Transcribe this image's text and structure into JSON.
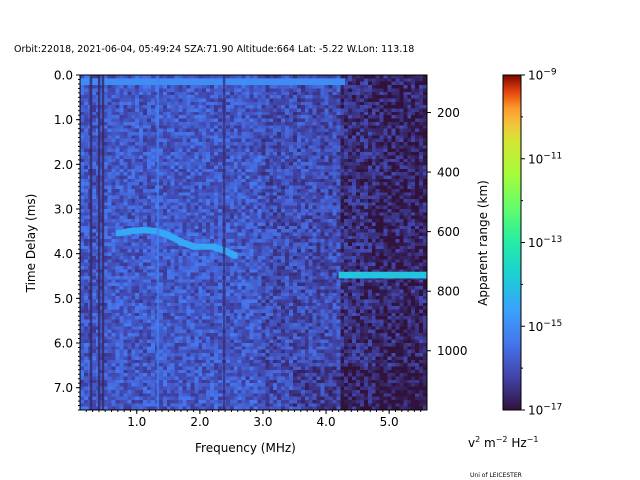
{
  "title": "Orbit:22018, 2021-06-04, 05:49:24 SZA:71.90 Altitude:664 Lat: -5.22 W.Lon: 113.18",
  "footer": "Uni of LEICESTER",
  "chart_data": {
    "type": "heatmap",
    "xlabel": "Frequency (MHz)",
    "ylabel": "Time Delay (ms)",
    "y2label": "Apparent range (km)",
    "xlim": [
      0.1,
      5.6
    ],
    "ylim": [
      7.5,
      0.0
    ],
    "xticks": [
      1.0,
      2.0,
      3.0,
      4.0,
      5.0
    ],
    "xtick_labels": [
      "1.0",
      "2.0",
      "3.0",
      "4.0",
      "5.0"
    ],
    "yticks": [
      0.0,
      1.0,
      2.0,
      3.0,
      4.0,
      5.0,
      6.0,
      7.0
    ],
    "ytick_labels": [
      "0.0",
      "1.0",
      "2.0",
      "3.0",
      "4.0",
      "5.0",
      "6.0",
      "7.0"
    ],
    "y2lim_km": [
      74,
      1199
    ],
    "y2ticks": [
      200,
      400,
      600,
      800,
      1000
    ],
    "y2tick_labels": [
      "200",
      "400",
      "600",
      "800",
      "1000"
    ],
    "colorbar": {
      "label_base": "v",
      "label_rest": " m",
      "label_sup1": "2",
      "label_sup2": "−2",
      "label_tail": " Hz",
      "label_sup3": "−1",
      "scale": "log",
      "ticks": [
        {
          "base": "10",
          "exp": "−9",
          "value": -9
        },
        {
          "base": "10",
          "exp": "−11",
          "value": -11
        },
        {
          "base": "10",
          "exp": "−13",
          "value": -13
        },
        {
          "base": "10",
          "exp": "−15",
          "value": -15
        },
        {
          "base": "10",
          "exp": "−17",
          "value": -17
        }
      ],
      "range_log10": [
        -17,
        -9
      ]
    },
    "grid": false,
    "features": [
      {
        "name": "trace-echo",
        "points": [
          [
            0.7,
            3.55
          ],
          [
            0.9,
            3.5
          ],
          [
            1.1,
            3.48
          ],
          [
            1.3,
            3.5
          ],
          [
            1.5,
            3.6
          ],
          [
            1.7,
            3.75
          ],
          [
            1.9,
            3.85
          ],
          [
            2.2,
            3.85
          ],
          [
            2.4,
            3.95
          ],
          [
            2.55,
            4.05
          ]
        ],
        "log10": -14.5
      },
      {
        "name": "horizontal-echo",
        "x_range": [
          4.2,
          5.6
        ],
        "y": 4.48,
        "log10": -14.0
      },
      {
        "name": "top-band",
        "x_range": [
          0.1,
          4.3
        ],
        "y": 0.15,
        "log10": -15.0
      },
      {
        "name": "vertical-bright",
        "x": 1.33,
        "log10": -15.2
      },
      {
        "name": "vertical-dark",
        "x": 2.38,
        "log10": -16.6
      }
    ]
  }
}
